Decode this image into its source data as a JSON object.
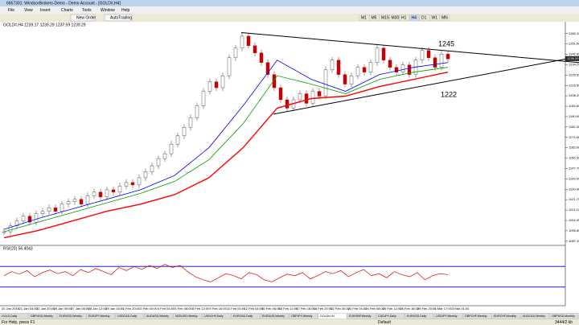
{
  "window": {
    "title": "6657301: WindsorBrokers-Demo - Demo Account - [GOLD#,H4]",
    "menu": [
      "File",
      "View",
      "Insert",
      "Charts",
      "Tools",
      "Window",
      "Help"
    ],
    "toolbar": {
      "new_order": "New Order",
      "autotrading": "AutoTrading",
      "timeframes": [
        "M1",
        "M5",
        "M15",
        "M30",
        "H1",
        "H4",
        "D1",
        "W1",
        "MN"
      ]
    }
  },
  "chart_data": {
    "type": "candlestick",
    "header": "GOLD#,H4  1239.17 1239.29 1237.59 1239.29",
    "ylim": [
      1085,
      1268
    ],
    "yticks": [
      {
        "value": 1087.15,
        "label": "1087.15"
      },
      {
        "value": 1095.8,
        "label": "1095.80"
      },
      {
        "value": 1104.45,
        "label": "1104.45"
      },
      {
        "value": 1113.1,
        "label": "1113.10"
      },
      {
        "value": 1121.75,
        "label": "1121.75"
      },
      {
        "value": 1130.4,
        "label": "1130.40"
      },
      {
        "value": 1139.05,
        "label": "1139.05"
      },
      {
        "value": 1147.7,
        "label": "1147.70"
      },
      {
        "value": 1156.35,
        "label": "1156.35"
      },
      {
        "value": 1165,
        "label": "1165.00"
      },
      {
        "value": 1173.65,
        "label": "1173.65"
      },
      {
        "value": 1182.3,
        "label": "1182.30"
      },
      {
        "value": 1190.95,
        "label": "1190.95"
      },
      {
        "value": 1199.6,
        "label": "1199.60"
      },
      {
        "value": 1208.25,
        "label": "1208.25"
      },
      {
        "value": 1216.9,
        "label": "1216.90"
      },
      {
        "value": 1225.55,
        "label": "1225.55"
      },
      {
        "value": 1234.2,
        "label": "1234.20"
      },
      {
        "value": 1242.85,
        "label": "1242.85"
      },
      {
        "value": 1251.5,
        "label": "1251.50"
      },
      {
        "value": 1260.15,
        "label": "1260.15"
      }
    ],
    "last_price": {
      "value": 1239.29,
      "label": "1239.29"
    },
    "closes": [
      1095,
      1100,
      1104,
      1108,
      1103,
      1110,
      1112,
      1115,
      1112,
      1118,
      1120,
      1122,
      1118,
      1125,
      1128,
      1124,
      1130,
      1128,
      1133,
      1136,
      1134,
      1140,
      1145,
      1150,
      1156,
      1160,
      1168,
      1175,
      1182,
      1190,
      1200,
      1212,
      1220,
      1215,
      1225,
      1240,
      1248,
      1258,
      1250,
      1244,
      1236,
      1226,
      1215,
      1205,
      1198,
      1205,
      1210,
      1202,
      1212,
      1208,
      1230,
      1238,
      1226,
      1218,
      1225,
      1232,
      1228,
      1236,
      1248,
      1238,
      1232,
      1228,
      1234,
      1226,
      1238,
      1246,
      1240,
      1232,
      1243,
      1239
    ],
    "series": [
      {
        "name": "MA fast",
        "color": "#0000ff",
        "values": [
          1097,
          1106,
          1114,
          1122,
          1130,
          1142,
          1165,
          1200,
          1238,
          1222,
          1212,
          1226,
          1232,
          1236
        ]
      },
      {
        "name": "MA mid",
        "color": "#00a000",
        "values": [
          1095,
          1103,
          1111,
          1119,
          1127,
          1137,
          1155,
          1185,
          1225,
          1218,
          1210,
          1222,
          1228,
          1232
        ]
      },
      {
        "name": "MA slow",
        "color": "#ff0000",
        "values": [
          1090,
          1096,
          1104,
          1112,
          1118,
          1126,
          1140,
          1165,
          1198,
          1206,
          1208,
          1216,
          1222,
          1228
        ]
      }
    ],
    "trendlines": [
      {
        "from": 1261,
        "to": 1236
      },
      {
        "from": 1193,
        "to": 1241
      }
    ],
    "annotations": [
      "1245",
      "1222"
    ],
    "x_labels": [
      "20 Jan 2016",
      "21 Jan 16:00",
      "22 Jan 20:00",
      "26 Jan 00:00",
      "27 Jan 08:00",
      "28 Jan 12:00",
      "29 Jan 16:00",
      "1 Feb 20:00",
      "3 Feb 00:00",
      "4 Feb 04:00",
      "5 Feb 08:00",
      "8 Feb 12:00",
      "9 Feb 16:00",
      "11 Feb 00:00",
      "12 Feb 04:00",
      "15 Feb 08:00",
      "16 Feb 12:00",
      "17 Feb 16:00",
      "18 Feb 20:00",
      "22 Feb 00:00",
      "23 Feb 04:00",
      "24 Feb 08:00",
      "25 Feb 12:00",
      "26 Feb 16:00",
      "29 Feb 20:00",
      "1 Mar 17:00",
      "3 Mar 01:00"
    ],
    "rsi": {
      "header": "RSI(20) 56.4043",
      "ylim": [
        0,
        100
      ],
      "levels": [
        70,
        30
      ],
      "values": [
        52,
        60,
        55,
        62,
        50,
        58,
        63,
        56,
        60,
        52,
        64,
        58,
        66,
        60,
        54,
        68,
        62,
        70,
        64,
        72,
        66,
        74,
        68,
        72,
        60,
        50,
        44,
        40,
        48,
        56,
        52,
        46,
        58,
        54,
        44,
        40,
        48,
        55,
        52,
        58,
        46,
        52,
        60,
        56,
        62,
        50,
        58,
        64,
        52,
        56,
        48,
        60,
        54,
        50,
        58,
        44,
        52,
        56,
        54
      ]
    }
  },
  "tabs": [
    "GOLD,Daily",
    "GBPUSD,Weekly",
    "EURUSD,Weekly",
    "EURJPY,Weekly",
    "USDCAD,Daily",
    "AUDUSD,Weekly",
    "NZDUSD,Weekly",
    "USDCHF,Daily",
    "EURCAD,Daily",
    "EURAUD,Weekly",
    "GBPJPY,Weekly",
    "GOLD#,H4",
    "EURGBP,Weekly",
    "CADJPY,Daily",
    "EURUSD,Daily",
    "USDJPY,Weekly",
    "GBPCHF,Weekly",
    "EURCHF,Monthly",
    "AUDCAD,Weekly",
    "GBPUSD,Monthly"
  ],
  "status": {
    "help": "For Help, press F1",
    "profile": "Default",
    "memory": "3444/2 kb"
  }
}
